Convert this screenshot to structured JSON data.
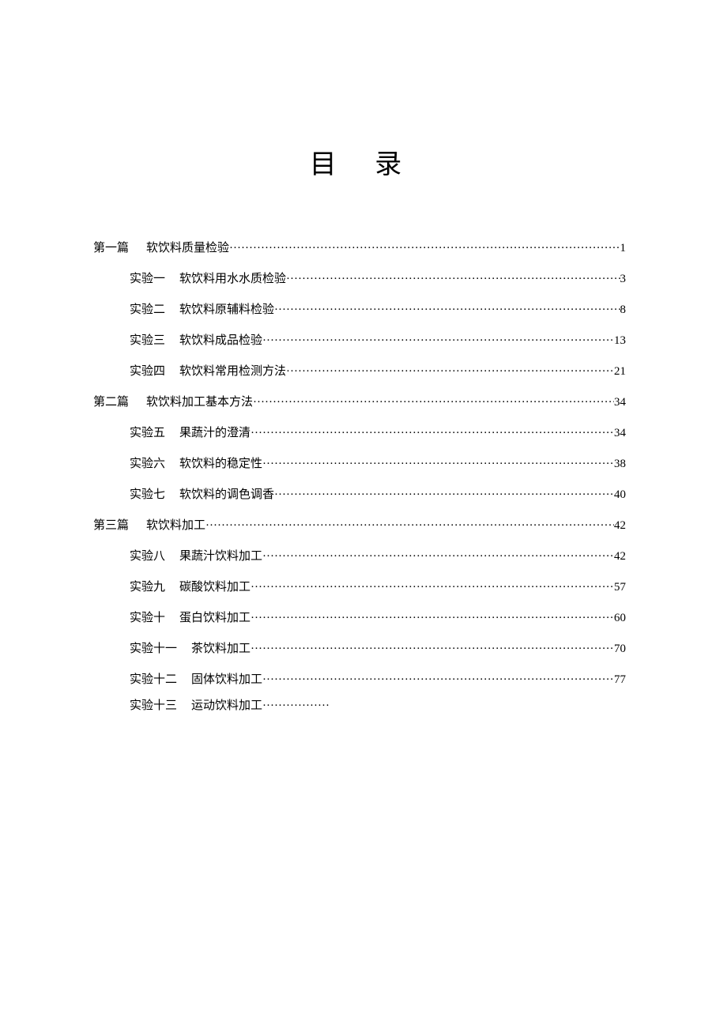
{
  "title": "目  录",
  "sections": [
    {
      "label": "第一篇",
      "title": "软饮料质量检验",
      "page": "1",
      "items": [
        {
          "label": "实验一",
          "title": "软饮料用水水质检验",
          "page": "3"
        },
        {
          "label": "实验二",
          "title": "软饮料原辅料检验",
          "page": "8"
        },
        {
          "label": "实验三",
          "title": "软饮料成品检验",
          "page": "13"
        },
        {
          "label": "实验四",
          "title": "软饮料常用检测方法",
          "page": "21"
        }
      ]
    },
    {
      "label": "第二篇",
      "title": "软饮料加工基本方法",
      "page": "34",
      "items": [
        {
          "label": "实验五",
          "title": "果蔬汁的澄清",
          "page": "34"
        },
        {
          "label": "实验六",
          "title": "软饮料的稳定性",
          "page": "38"
        },
        {
          "label": "实验七",
          "title": "软饮料的调色调香",
          "page": "40"
        }
      ]
    },
    {
      "label": "第三篇",
      "title": "软饮料加工",
      "page": "42",
      "items": [
        {
          "label": "实验八",
          "title": "果蔬汁饮料加工",
          "page": "42"
        },
        {
          "label": "实验九",
          "title": "碳酸饮料加工",
          "page": "57"
        },
        {
          "label": "实验十",
          "title": "蛋白饮料加工",
          "page": "60"
        },
        {
          "label": "实验十一",
          "title": "茶饮料加工",
          "page": "70"
        },
        {
          "label": "实验十二",
          "title": "固体饮料加工",
          "page": "77"
        },
        {
          "label": "实验十三",
          "title": "运动饮料加工",
          "page": "",
          "incomplete": true
        }
      ]
    }
  ]
}
